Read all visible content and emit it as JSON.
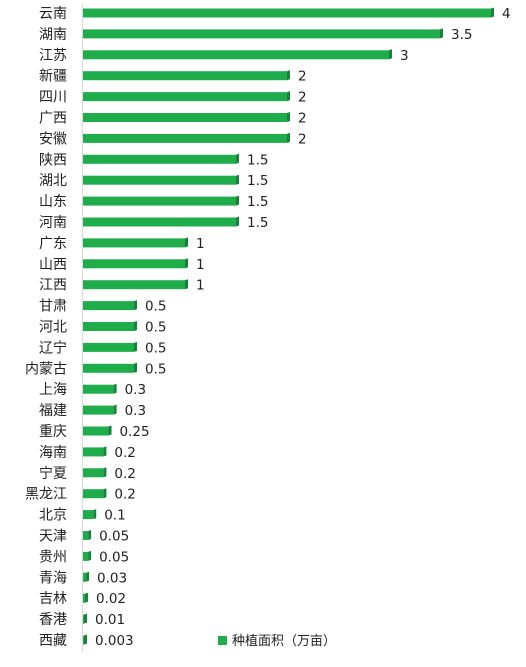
{
  "chart_data": {
    "type": "bar",
    "orientation": "horizontal",
    "categories": [
      "云南",
      "湖南",
      "江苏",
      "新疆",
      "四川",
      "广西",
      "安徽",
      "陕西",
      "湖北",
      "山东",
      "河南",
      "广东",
      "山西",
      "江西",
      "甘肃",
      "河北",
      "辽宁",
      "内蒙古",
      "上海",
      "福建",
      "重庆",
      "海南",
      "宁夏",
      "黑龙江",
      "北京",
      "天津",
      "贵州",
      "青海",
      "吉林",
      "香港",
      "西藏"
    ],
    "value_labels": [
      "4",
      "3.5",
      "3",
      "2",
      "2",
      "2",
      "2",
      "1.5",
      "1.5",
      "1.5",
      "1.5",
      "1",
      "1",
      "1",
      "0.5",
      "0.5",
      "0.5",
      "0.5",
      "0.3",
      "0.3",
      "0.25",
      "0.2",
      "0.2",
      "0.2",
      "0.1",
      "0.05",
      "0.05",
      "0.03",
      "0.02",
      "0.01",
      "0.003"
    ],
    "series": [
      {
        "name": "种植面积（万亩）",
        "values": [
          4,
          3.5,
          3,
          2,
          2,
          2,
          2,
          1.5,
          1.5,
          1.5,
          1.5,
          1,
          1,
          1,
          0.5,
          0.5,
          0.5,
          0.5,
          0.3,
          0.3,
          0.25,
          0.2,
          0.2,
          0.2,
          0.1,
          0.05,
          0.05,
          0.03,
          0.02,
          0.01,
          0.003
        ]
      }
    ],
    "xlim": [
      0,
      4
    ],
    "grid": false,
    "legend": "bottom-right",
    "bar_color": "#1fad4c",
    "bar_shade_color": "#17823a",
    "axis_color": "#d9d9d9"
  }
}
